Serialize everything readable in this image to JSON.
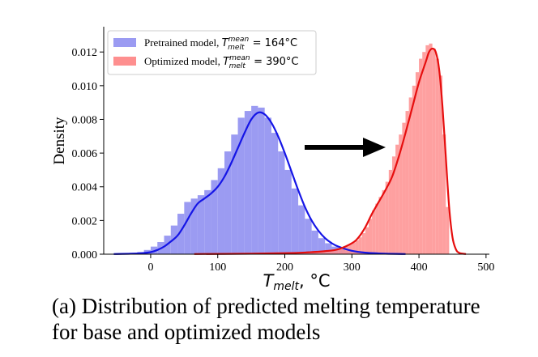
{
  "chart_data": {
    "type": "histogram",
    "xlabel_main": "T",
    "xlabel_sub": "melt",
    "xlabel_suffix": ", °C",
    "ylabel": "Density",
    "xlim": [
      -70,
      505
    ],
    "ylim": [
      0,
      0.0135
    ],
    "xticks": [
      0,
      100,
      200,
      300,
      400,
      500
    ],
    "yticks": [
      0.0,
      0.002,
      0.004,
      0.006,
      0.008,
      0.01,
      0.012
    ],
    "grid": false,
    "legend_position": "top-left",
    "annotation": "arrow from pretrained distribution to optimized distribution",
    "series": [
      {
        "name": "Pretrained model",
        "legend_formula": "T_melt^mean = 164°C",
        "legend_prefix": "Pretrained model, ",
        "legend_value": " = 164°C",
        "fill_color": "#9b9bf2",
        "line_color": "#1515e6",
        "bins": {
          "start": -60,
          "width": 10,
          "values": [
            1e-05,
            2e-05,
            3e-05,
            7e-05,
            0.00013,
            0.00025,
            0.00045,
            0.00072,
            0.0011,
            0.0017,
            0.0024,
            0.0031,
            0.0033,
            0.0035,
            0.0038,
            0.0044,
            0.0051,
            0.0061,
            0.0071,
            0.0081,
            0.0085,
            0.0088,
            0.0087,
            0.0081,
            0.0072,
            0.0061,
            0.005,
            0.0039,
            0.0029,
            0.0021,
            0.0014,
            0.00095,
            0.00065,
            0.00045,
            0.0003,
            0.00018,
            0.0001,
            5e-05
          ]
        },
        "kde": {
          "x": [
            -55,
            -30,
            -10,
            0,
            10,
            20,
            30,
            40,
            50,
            60,
            70,
            80,
            90,
            100,
            110,
            120,
            130,
            140,
            150,
            160,
            170,
            180,
            190,
            200,
            210,
            220,
            230,
            240,
            250,
            260,
            270,
            280,
            300,
            320,
            350,
            380
          ],
          "y": [
            1e-05,
            3e-05,
            7e-05,
            0.00012,
            0.00025,
            0.00045,
            0.00075,
            0.0011,
            0.0017,
            0.0024,
            0.003,
            0.0033,
            0.0036,
            0.004,
            0.0046,
            0.0054,
            0.0063,
            0.0072,
            0.008,
            0.0084,
            0.0083,
            0.0078,
            0.007,
            0.006,
            0.0049,
            0.0038,
            0.0028,
            0.002,
            0.0014,
            0.00095,
            0.00065,
            0.00045,
            0.0002,
            9e-05,
            3e-05,
            1e-05
          ]
        }
      },
      {
        "name": "Optimized model",
        "legend_formula": "T_melt^mean = 390°C",
        "legend_prefix": "Optimized model, ",
        "legend_value": " = 390°C",
        "fill_color": "#fe8f8f",
        "line_color": "#e60e0e",
        "bins": {
          "start": 190,
          "width": 5,
          "values": [
            5e-05,
            5e-05,
            5e-05,
            5e-05,
            5e-05,
            6e-05,
            6e-05,
            7e-05,
            9e-05,
            0.0001,
            0.00012,
            0.00013,
            0.00015,
            0.00017,
            0.0002,
            0.00024,
            0.00028,
            0.00032,
            0.00036,
            0.00042,
            0.0005,
            0.00058,
            0.00068,
            0.00082,
            0.001,
            0.00125,
            0.0016,
            0.0021,
            0.0026,
            0.003,
            0.0034,
            0.0038,
            0.0043,
            0.005,
            0.0058,
            0.0065,
            0.0071,
            0.0078,
            0.0085,
            0.0093,
            0.01,
            0.0108,
            0.0116,
            0.012,
            0.0124,
            0.0125,
            0.0122,
            0.0116,
            0.0106,
            0.0071,
            0.0028
          ]
        },
        "kde": {
          "x": [
            65,
            150,
            200,
            230,
            260,
            280,
            300,
            310,
            320,
            330,
            340,
            350,
            360,
            370,
            380,
            390,
            400,
            410,
            415,
            420,
            425,
            430,
            435,
            440,
            445,
            450,
            455,
            460,
            470
          ],
          "y": [
            1e-05,
            3e-05,
            6e-05,
            0.0001,
            0.00018,
            0.0003,
            0.00065,
            0.001,
            0.0016,
            0.0024,
            0.0031,
            0.0038,
            0.0046,
            0.0058,
            0.0072,
            0.0087,
            0.0102,
            0.0114,
            0.012,
            0.0122,
            0.012,
            0.011,
            0.0088,
            0.0058,
            0.0028,
            0.001,
            0.0003,
            8e-05,
            1e-05
          ]
        }
      }
    ]
  },
  "caption": {
    "line1": "(a) Distribution of predicted melting temperature",
    "line2": "for base and optimized models"
  }
}
